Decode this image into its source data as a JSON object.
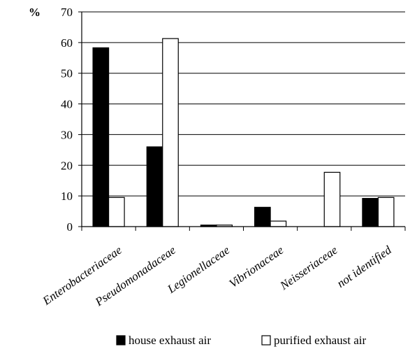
{
  "chart_data": {
    "type": "bar",
    "y_unit_label": "%",
    "categories": [
      "Enterobacteriaceae",
      "Pseudomonadaceae",
      "Legionellaceae",
      "Vibrionaceae",
      "Neisseriaceae",
      "not identified"
    ],
    "series": [
      {
        "name": "house exhaust air",
        "values": [
          58.3,
          26.0,
          0.5,
          6.3,
          0,
          9.2
        ],
        "color": "#000000"
      },
      {
        "name": "purified exhaust air",
        "values": [
          9.5,
          61.3,
          0.5,
          1.8,
          17.7,
          9.5
        ],
        "color": "#ffffff"
      }
    ],
    "yticks": [
      0,
      10,
      20,
      30,
      40,
      50,
      60,
      70
    ],
    "ylim": [
      0,
      70
    ],
    "grid": "horizontal",
    "legend_position": "bottom"
  }
}
